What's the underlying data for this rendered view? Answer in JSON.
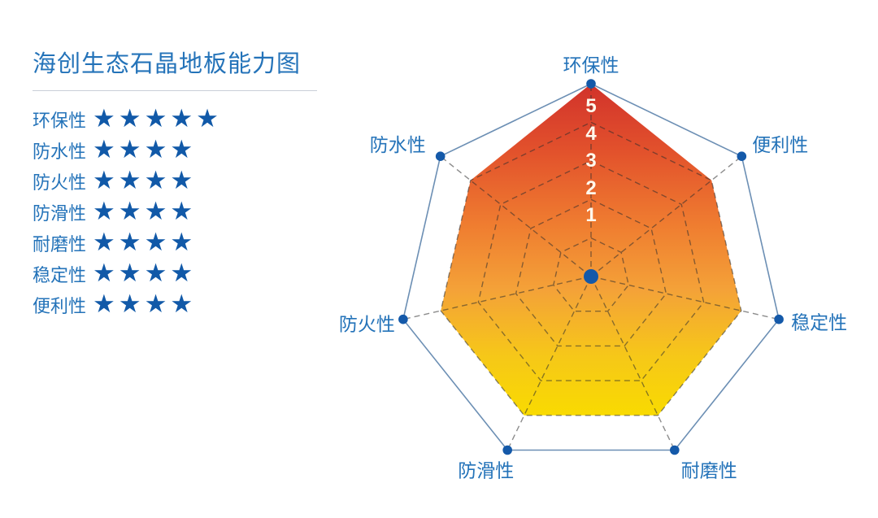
{
  "panel": {
    "title": "海创生态石晶地板能力图",
    "star_char": "★",
    "items": [
      {
        "label": "环保性",
        "rating": 5
      },
      {
        "label": "防水性",
        "rating": 4
      },
      {
        "label": "防火性",
        "rating": 4
      },
      {
        "label": "防滑性",
        "rating": 4
      },
      {
        "label": "耐磨性",
        "rating": 4
      },
      {
        "label": "稳定性",
        "rating": 4
      },
      {
        "label": "便利性",
        "rating": 4
      }
    ]
  },
  "chart_data": {
    "type": "radar",
    "title": "海创生态石晶地板能力图",
    "axes": [
      "环保性",
      "便利性",
      "稳定性",
      "耐磨性",
      "防滑性",
      "防火性",
      "防水性"
    ],
    "values": [
      5,
      4,
      4,
      4,
      4,
      4,
      4
    ],
    "max": 5,
    "scale_ticks": [
      "5",
      "4",
      "3",
      "2",
      "1"
    ],
    "grid": {
      "inner_rings": "dashed",
      "outer_ring": "solid",
      "radial_axes": "dashed"
    },
    "legend_position": "left",
    "fill_gradient": [
      "#D1322B",
      "#E2512C",
      "#EF7C30",
      "#F4A238",
      "#F6C818",
      "#F9DB00"
    ]
  },
  "colors": {
    "text_blue": "#2473B9",
    "star_blue": "#1159A8",
    "dot_blue": "#1459A9",
    "outer_line": "#6C8FB4",
    "divider": "#C9CFD8",
    "tick_text": "#FFF8EC",
    "grid_dash": "rgba(45,45,45,0.55)"
  }
}
